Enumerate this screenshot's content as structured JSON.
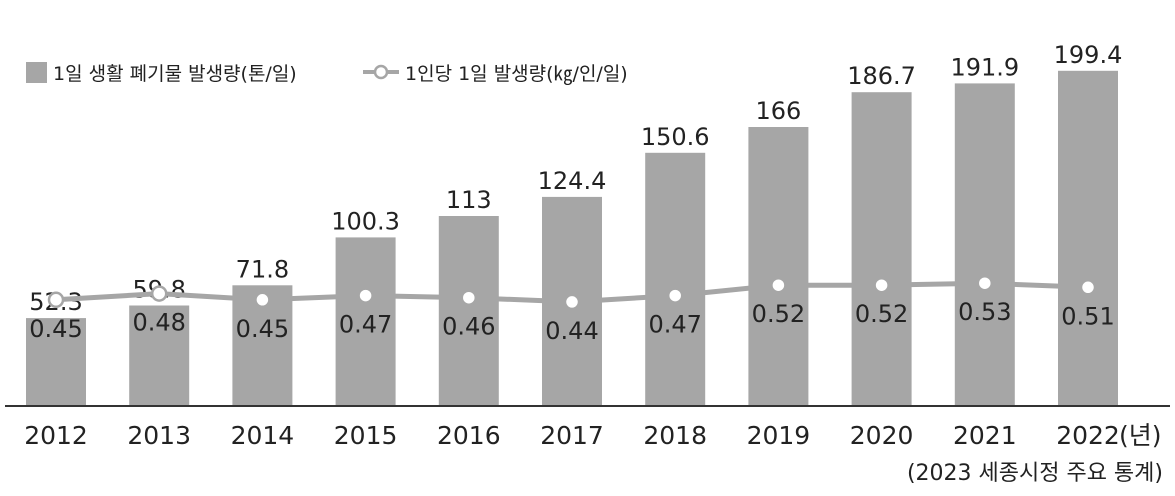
{
  "chart_data": {
    "type": "bar",
    "categories": [
      "2012",
      "2013",
      "2014",
      "2015",
      "2016",
      "2017",
      "2018",
      "2019",
      "2020",
      "2021",
      "2022"
    ],
    "x_unit_suffix": "(년)",
    "series": [
      {
        "name": "1일 생활 폐기물 발생량(톤/일)",
        "type": "bar",
        "values": [
          52.3,
          59.8,
          71.8,
          100.3,
          113,
          124.4,
          150.6,
          166,
          186.7,
          191.9,
          199.4
        ],
        "labels": [
          "52.3",
          "59.8",
          "71.8",
          "100.3",
          "113",
          "124.4",
          "150.6",
          "166",
          "186.7",
          "191.9",
          "199.4"
        ]
      },
      {
        "name": "1인당 1일 발생량(㎏/인/일)",
        "type": "line",
        "values": [
          0.45,
          0.48,
          0.45,
          0.47,
          0.46,
          0.44,
          0.47,
          0.52,
          0.52,
          0.53,
          0.51
        ],
        "labels": [
          "0.45",
          "0.48",
          "0.45",
          "0.47",
          "0.46",
          "0.44",
          "0.47",
          "0.52",
          "0.52",
          "0.53",
          "0.51"
        ]
      }
    ],
    "legend_position": "top-left",
    "grid": false,
    "colors": {
      "bar": "#a6a6a6",
      "line": "#a6a6a6",
      "marker_fill": "#ffffff",
      "axis": "#333333",
      "text": "#222222"
    },
    "source": "(2023 세종시정 주요 통계)"
  }
}
